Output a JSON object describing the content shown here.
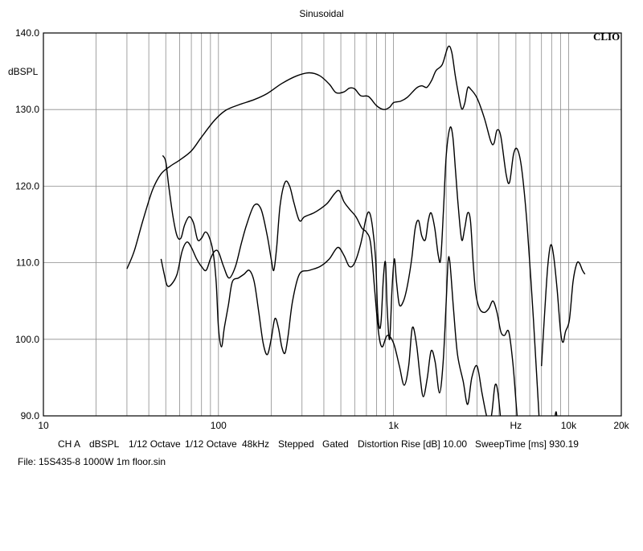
{
  "chart_data": {
    "type": "line",
    "title": "Sinusoidal",
    "ylabel": "dBSPL",
    "xlabel": "Hz",
    "x_scale": "log",
    "xlim": [
      10,
      20000
    ],
    "ylim": [
      90,
      140
    ],
    "ytick_labels": [
      "140.0",
      "130.0",
      "120.0",
      "110.0",
      "100.0",
      "90.0"
    ],
    "yticks": [
      140,
      130,
      120,
      110,
      100,
      90
    ],
    "xtick_labels": [
      "10",
      "100",
      "1k",
      "Hz",
      "10k",
      "20k"
    ],
    "xticks": [
      10,
      100,
      1000,
      5000,
      10000,
      20000
    ],
    "grid": true,
    "brand": "CLIO",
    "series": [
      {
        "points": [
          [
            30,
            109.2
          ],
          [
            33,
            111.5
          ],
          [
            37,
            115.5
          ],
          [
            42,
            119.5
          ],
          [
            47,
            121.6
          ],
          [
            53,
            122.6
          ],
          [
            60,
            123.4
          ],
          [
            70,
            124.6
          ],
          [
            80,
            126.4
          ],
          [
            95,
            128.6
          ],
          [
            110,
            129.9
          ],
          [
            130,
            130.6
          ],
          [
            160,
            131.3
          ],
          [
            190,
            132.1
          ],
          [
            230,
            133.4
          ],
          [
            280,
            134.4
          ],
          [
            330,
            134.8
          ],
          [
            380,
            134.4
          ],
          [
            430,
            133.3
          ],
          [
            470,
            132.2
          ],
          [
            520,
            132.3
          ],
          [
            560,
            132.8
          ],
          [
            600,
            132.7
          ],
          [
            650,
            131.8
          ],
          [
            720,
            131.7
          ],
          [
            800,
            130.5
          ],
          [
            880,
            130.0
          ],
          [
            950,
            130.3
          ],
          [
            1000,
            130.9
          ],
          [
            1100,
            131.1
          ],
          [
            1200,
            131.6
          ],
          [
            1350,
            132.8
          ],
          [
            1450,
            133.1
          ],
          [
            1550,
            132.9
          ],
          [
            1650,
            133.8
          ],
          [
            1750,
            135.1
          ],
          [
            1900,
            135.9
          ],
          [
            2050,
            138.2
          ],
          [
            2150,
            137.5
          ],
          [
            2250,
            134.5
          ],
          [
            2350,
            132.0
          ],
          [
            2450,
            130.1
          ],
          [
            2550,
            130.8
          ],
          [
            2650,
            132.8
          ],
          [
            2750,
            132.7
          ],
          [
            3000,
            131.5
          ],
          [
            3300,
            128.9
          ],
          [
            3600,
            125.8
          ],
          [
            3750,
            125.6
          ],
          [
            3900,
            127.3
          ],
          [
            4100,
            126.5
          ],
          [
            4400,
            121.5
          ],
          [
            4600,
            120.5
          ],
          [
            4850,
            124.2
          ],
          [
            5100,
            124.8
          ],
          [
            5400,
            122.2
          ],
          [
            5800,
            114.8
          ],
          [
            6300,
            102.5
          ],
          [
            6700,
            92
          ],
          [
            7000,
            84
          ]
        ]
      },
      {
        "points": [
          [
            48,
            124.0
          ],
          [
            50,
            123.2
          ],
          [
            52,
            120.0
          ],
          [
            55,
            116.0
          ],
          [
            58,
            113.5
          ],
          [
            61,
            113.2
          ],
          [
            64,
            114.9
          ],
          [
            68,
            116.0
          ],
          [
            72,
            115.2
          ],
          [
            76,
            113.0
          ],
          [
            80,
            113.2
          ],
          [
            84,
            114.0
          ],
          [
            88,
            113.5
          ],
          [
            93,
            111.5
          ],
          [
            97,
            107.5
          ],
          [
            100,
            101.5
          ],
          [
            104,
            99.0
          ],
          [
            108,
            101.5
          ],
          [
            114,
            104.5
          ],
          [
            120,
            107.5
          ],
          [
            130,
            108.0
          ],
          [
            140,
            108.5
          ],
          [
            150,
            109.0
          ],
          [
            160,
            107.5
          ],
          [
            170,
            103.5
          ],
          [
            180,
            99.5
          ],
          [
            190,
            98.0
          ],
          [
            200,
            100.0
          ],
          [
            210,
            102.7
          ],
          [
            220,
            101.5
          ],
          [
            230,
            99.0
          ],
          [
            240,
            98.2
          ],
          [
            250,
            100.5
          ],
          [
            265,
            105.0
          ],
          [
            290,
            108.5
          ],
          [
            330,
            109.0
          ],
          [
            380,
            109.5
          ],
          [
            430,
            110.5
          ],
          [
            480,
            112.0
          ],
          [
            520,
            111.0
          ],
          [
            560,
            109.5
          ],
          [
            600,
            110.0
          ],
          [
            650,
            112.5
          ],
          [
            700,
            116.0
          ],
          [
            730,
            116.5
          ],
          [
            760,
            114.5
          ],
          [
            790,
            110.5
          ],
          [
            810,
            104.0
          ],
          [
            830,
            101.5
          ],
          [
            850,
            102.5
          ],
          [
            875,
            108.0
          ],
          [
            900,
            110.0
          ],
          [
            920,
            104.0
          ],
          [
            950,
            100.0
          ],
          [
            980,
            106.5
          ],
          [
            1010,
            110.5
          ],
          [
            1040,
            107.5
          ],
          [
            1080,
            104.5
          ],
          [
            1140,
            105.0
          ],
          [
            1200,
            107.0
          ],
          [
            1270,
            110.5
          ],
          [
            1330,
            114.5
          ],
          [
            1390,
            115.5
          ],
          [
            1450,
            113.5
          ],
          [
            1520,
            113.0
          ],
          [
            1580,
            115.5
          ],
          [
            1640,
            116.5
          ],
          [
            1720,
            114.5
          ],
          [
            1800,
            111.0
          ],
          [
            1860,
            110.5
          ],
          [
            1930,
            117.0
          ],
          [
            2000,
            124.0
          ],
          [
            2100,
            127.6
          ],
          [
            2180,
            126.5
          ],
          [
            2260,
            122.0
          ],
          [
            2340,
            117.5
          ],
          [
            2450,
            113.0
          ],
          [
            2550,
            114.5
          ],
          [
            2650,
            116.5
          ],
          [
            2750,
            115.5
          ],
          [
            2850,
            110.0
          ],
          [
            2950,
            106.0
          ],
          [
            3100,
            104.0
          ],
          [
            3300,
            103.5
          ],
          [
            3500,
            104.0
          ],
          [
            3700,
            105.0
          ],
          [
            3900,
            103.5
          ],
          [
            4100,
            101.0
          ],
          [
            4300,
            100.5
          ],
          [
            4550,
            101.0
          ],
          [
            4800,
            97.0
          ],
          [
            5000,
            92.0
          ],
          [
            5200,
            87.0
          ]
        ]
      },
      {
        "points": [
          [
            47,
            110.5
          ],
          [
            49,
            108.5
          ],
          [
            51,
            107.0
          ],
          [
            54,
            107.2
          ],
          [
            58,
            108.5
          ],
          [
            62,
            111.5
          ],
          [
            66,
            112.7
          ],
          [
            70,
            112.0
          ],
          [
            75,
            110.5
          ],
          [
            80,
            109.5
          ],
          [
            85,
            109.0
          ],
          [
            90,
            110.5
          ],
          [
            95,
            111.5
          ],
          [
            100,
            111.4
          ],
          [
            107,
            109.5
          ],
          [
            115,
            108.0
          ],
          [
            125,
            109.5
          ],
          [
            135,
            112.5
          ],
          [
            145,
            115.0
          ],
          [
            160,
            117.5
          ],
          [
            175,
            117.0
          ],
          [
            190,
            113.5
          ],
          [
            200,
            110.5
          ],
          [
            207,
            109.0
          ],
          [
            215,
            112.0
          ],
          [
            225,
            117.5
          ],
          [
            240,
            120.5
          ],
          [
            255,
            120.0
          ],
          [
            270,
            117.8
          ],
          [
            290,
            115.5
          ],
          [
            310,
            116.0
          ],
          [
            350,
            116.5
          ],
          [
            380,
            117.0
          ],
          [
            420,
            117.8
          ],
          [
            460,
            119.0
          ],
          [
            490,
            119.4
          ],
          [
            520,
            118.0
          ],
          [
            560,
            117.0
          ],
          [
            610,
            116.0
          ],
          [
            660,
            114.5
          ],
          [
            700,
            114.0
          ],
          [
            740,
            112.5
          ],
          [
            780,
            106.5
          ],
          [
            820,
            101.0
          ],
          [
            860,
            99.0
          ],
          [
            920,
            100.5
          ],
          [
            1000,
            99.5
          ],
          [
            1080,
            96.5
          ],
          [
            1150,
            94.0
          ],
          [
            1220,
            96.5
          ],
          [
            1280,
            101.5
          ],
          [
            1350,
            99.5
          ],
          [
            1420,
            95.0
          ],
          [
            1480,
            92.5
          ],
          [
            1560,
            95.0
          ],
          [
            1640,
            98.5
          ],
          [
            1730,
            97.0
          ],
          [
            1830,
            93.0
          ],
          [
            1920,
            97.0
          ],
          [
            2000,
            105.0
          ],
          [
            2050,
            110.2
          ],
          [
            2100,
            110.0
          ],
          [
            2200,
            104.0
          ],
          [
            2320,
            98.0
          ],
          [
            2500,
            94.5
          ],
          [
            2650,
            91.5
          ],
          [
            2800,
            95.0
          ],
          [
            3000,
            96.5
          ],
          [
            3200,
            93.0
          ],
          [
            3400,
            90.0
          ],
          [
            3600,
            88.5
          ]
        ]
      },
      {
        "points": [
          [
            3450,
            87.0
          ],
          [
            3650,
            90.5
          ],
          [
            3800,
            94.0
          ],
          [
            3950,
            93.0
          ],
          [
            4150,
            88.0
          ]
        ]
      },
      {
        "points": [
          [
            8200,
            88.0
          ],
          [
            8500,
            90.5
          ],
          [
            8800,
            86.0
          ]
        ]
      },
      {
        "points": [
          [
            7000,
            96.5
          ],
          [
            7300,
            103.5
          ],
          [
            7600,
            109.5
          ],
          [
            7900,
            112.3
          ],
          [
            8200,
            111.0
          ],
          [
            8600,
            106.5
          ],
          [
            9000,
            101.0
          ],
          [
            9300,
            99.6
          ],
          [
            9600,
            101.0
          ],
          [
            10100,
            102.5
          ],
          [
            10600,
            107.5
          ],
          [
            11100,
            109.8
          ],
          [
            11500,
            110.0
          ],
          [
            12000,
            109.0
          ],
          [
            12400,
            108.5
          ]
        ]
      }
    ]
  },
  "footer": {
    "channel": "CH A",
    "unit": "dBSPL",
    "smoothing1": "1/12 Octave",
    "smoothing2": "1/12 Octave",
    "rate": "48kHz",
    "mode": "Stepped",
    "gate": "Gated",
    "distortion": "Distortion Rise [dB] 10.00",
    "sweep": "SweepTime [ms] 930.19"
  },
  "file": "File: 15S435-8 1000W 1m floor.sin"
}
